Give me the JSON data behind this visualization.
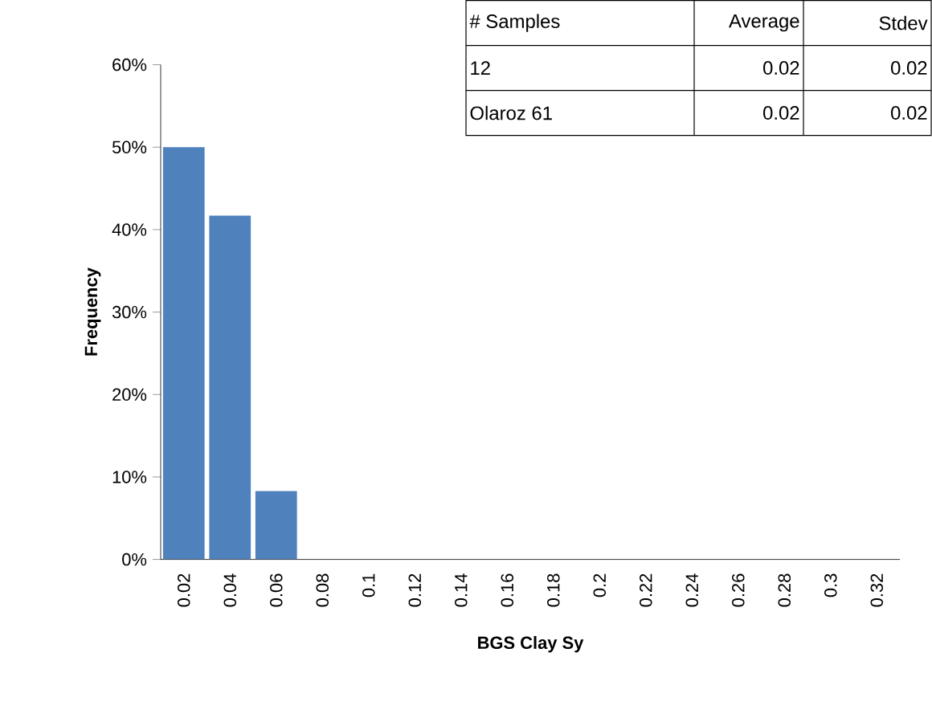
{
  "chart_data": {
    "type": "bar",
    "xlabel": "BGS Clay Sy",
    "ylabel": "Frequency",
    "categories": [
      "0.02",
      "0.04",
      "0.06",
      "0.08",
      "0.1",
      "0.12",
      "0.14",
      "0.16",
      "0.18",
      "0.2",
      "0.22",
      "0.24",
      "0.26",
      "0.28",
      "0.3",
      "0.32"
    ],
    "values": [
      50,
      41.7,
      8.3,
      0,
      0,
      0,
      0,
      0,
      0,
      0,
      0,
      0,
      0,
      0,
      0,
      0
    ],
    "color": "#4f81bd",
    "ylim": [
      0,
      60
    ],
    "yticks": [
      {
        "value": 0,
        "label": "0%"
      },
      {
        "value": 10,
        "label": "10%"
      },
      {
        "value": 20,
        "label": "20%"
      },
      {
        "value": 30,
        "label": "30%"
      },
      {
        "value": 40,
        "label": "40%"
      },
      {
        "value": 50,
        "label": "50%"
      },
      {
        "value": 60,
        "label": "60%"
      }
    ],
    "grid": false,
    "annotations": [
      "# Samples",
      "Average",
      "Stdev",
      "12",
      "0.02",
      "0.02",
      "Olaroz 61",
      "0.02",
      "0.02"
    ]
  }
}
